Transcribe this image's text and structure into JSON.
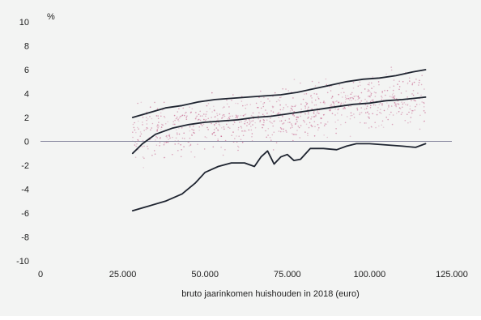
{
  "chart_data": {
    "type": "line",
    "title": "",
    "xlabel": "bruto jaarinkomen huishouden in 2018 (euro)",
    "ylabel": "%",
    "xlim": [
      0,
      125000
    ],
    "ylim": [
      -10,
      10
    ],
    "x_ticks": [
      0,
      25000,
      50000,
      75000,
      100000,
      125000
    ],
    "x_tick_labels": [
      "0",
      "25.000",
      "50.000",
      "75.000",
      "100.000",
      "125.000"
    ],
    "y_ticks": [
      10,
      8,
      6,
      4,
      2,
      0,
      -2,
      -4,
      -6,
      -8,
      -10
    ],
    "y_tick_labels": [
      "10",
      "8",
      "6",
      "4",
      "2",
      "0",
      "-2",
      "-4",
      "-6",
      "-8",
      "-10"
    ],
    "grid": false,
    "reference_line_y": 0,
    "colors": {
      "lines": "#1e2430",
      "scatter": "#c4608a",
      "zero_line": "#8a8aa0",
      "background": "#f3f4f3"
    },
    "scatter": {
      "x_range": [
        28000,
        117000
      ],
      "y_center_start": 0.5,
      "y_center_end": 3.8,
      "y_spread": 1.7,
      "count": 900
    },
    "series": [
      {
        "x": [
          28000,
          33000,
          38000,
          43000,
          48000,
          53000,
          58000,
          63000,
          68000,
          73000,
          78000,
          83000,
          88000,
          93000,
          98000,
          103000,
          108000,
          113000,
          117000
        ],
        "values": [
          2.0,
          2.4,
          2.8,
          3.0,
          3.3,
          3.5,
          3.6,
          3.7,
          3.8,
          3.9,
          4.1,
          4.4,
          4.7,
          5.0,
          5.2,
          5.3,
          5.5,
          5.8,
          6.0
        ]
      },
      {
        "x": [
          28000,
          31000,
          35000,
          40000,
          45000,
          50000,
          55000,
          60000,
          65000,
          70000,
          75000,
          80000,
          85000,
          90000,
          95000,
          100000,
          105000,
          110000,
          117000
        ],
        "values": [
          -1.0,
          -0.2,
          0.6,
          1.1,
          1.4,
          1.6,
          1.7,
          1.8,
          2.0,
          2.1,
          2.3,
          2.5,
          2.7,
          2.9,
          3.1,
          3.2,
          3.4,
          3.5,
          3.7
        ]
      },
      {
        "x": [
          28000,
          33000,
          38000,
          43000,
          47000,
          50000,
          54000,
          58000,
          62000,
          65000,
          67000,
          69000,
          71000,
          73000,
          75000,
          77000,
          79000,
          82000,
          86000,
          90000,
          93000,
          96000,
          100000,
          105000,
          110000,
          114000,
          117000
        ],
        "values": [
          -5.8,
          -5.4,
          -5.0,
          -4.4,
          -3.5,
          -2.6,
          -2.1,
          -1.8,
          -1.8,
          -2.1,
          -1.3,
          -0.8,
          -1.9,
          -1.3,
          -1.1,
          -1.6,
          -1.5,
          -0.6,
          -0.6,
          -0.7,
          -0.4,
          -0.2,
          -0.2,
          -0.3,
          -0.4,
          -0.5,
          -0.2
        ]
      }
    ]
  }
}
